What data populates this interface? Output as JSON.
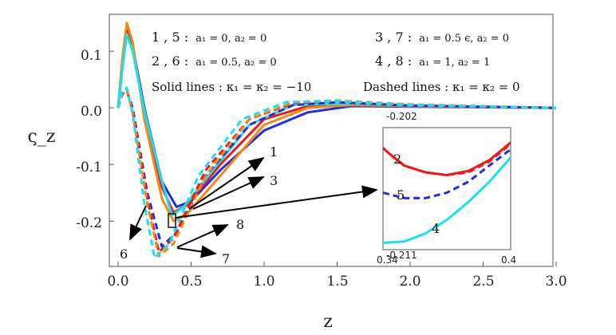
{
  "chart_data": {
    "type": "line",
    "xlabel": "z",
    "ylabel": "ς_z",
    "xlim": [
      0,
      3.0
    ],
    "ylim": [
      -0.28,
      0.165
    ],
    "x_ticks": [
      "0.0",
      "0.5",
      "1.0",
      "1.5",
      "2.0",
      "2.5",
      "3.0"
    ],
    "y_ticks": [
      "0.1",
      "0.0",
      "-0.1",
      "-0.2"
    ],
    "colors": {
      "blue": "#1f2fe0",
      "red": "#f01818",
      "orange": "#f08a10",
      "cyan": "#18e0f0"
    },
    "annotations": [
      {
        "case": "1 , 5 :",
        "formula": "a₁ = 0, a₂ = 0"
      },
      {
        "case": "2 , 6 :",
        "formula": "a₁ = 0.5, a₂ = 0"
      },
      {
        "case": "3 , 7 :",
        "formula": "a₁ = 0.5 ϵ, a₂ = 0"
      },
      {
        "case": "4 , 8 :",
        "formula": "a₁ = 1, a₂ = 1"
      }
    ],
    "solid_label": "Solid lines : κ₁ = κ₂ = −10",
    "dashed_label": "Dashed lines : κ₁ = κ₂ = 0",
    "curve_labels": [
      "1",
      "3",
      "8",
      "7",
      "6"
    ],
    "series": [
      {
        "style": "solid",
        "color": "blue",
        "points": [
          [
            0,
            0
          ],
          [
            0.03,
            0.08
          ],
          [
            0.06,
            0.14
          ],
          [
            0.1,
            0.11
          ],
          [
            0.18,
            0.0
          ],
          [
            0.3,
            -0.13
          ],
          [
            0.4,
            -0.175
          ],
          [
            0.5,
            -0.165
          ],
          [
            0.7,
            -0.11
          ],
          [
            1.0,
            -0.04
          ],
          [
            1.3,
            -0.008
          ],
          [
            1.6,
            0.003
          ],
          [
            2.0,
            0.002
          ],
          [
            3.0,
            0.0
          ]
        ]
      },
      {
        "style": "solid",
        "color": "red",
        "points": [
          [
            0,
            0
          ],
          [
            0.03,
            0.08
          ],
          [
            0.06,
            0.145
          ],
          [
            0.1,
            0.11
          ],
          [
            0.18,
            -0.01
          ],
          [
            0.3,
            -0.14
          ],
          [
            0.38,
            -0.185
          ],
          [
            0.48,
            -0.17
          ],
          [
            0.7,
            -0.1
          ],
          [
            1.0,
            -0.02
          ],
          [
            1.3,
            0.003
          ],
          [
            1.6,
            0.006
          ],
          [
            2.0,
            0.003
          ],
          [
            3.0,
            0.0
          ]
        ]
      },
      {
        "style": "solid",
        "color": "orange",
        "points": [
          [
            0,
            0
          ],
          [
            0.03,
            0.09
          ],
          [
            0.06,
            0.15
          ],
          [
            0.1,
            0.115
          ],
          [
            0.18,
            -0.02
          ],
          [
            0.3,
            -0.16
          ],
          [
            0.38,
            -0.2
          ],
          [
            0.48,
            -0.185
          ],
          [
            0.7,
            -0.12
          ],
          [
            1.0,
            -0.03
          ],
          [
            1.3,
            0.0
          ],
          [
            1.6,
            0.005
          ],
          [
            2.0,
            0.003
          ],
          [
            3.0,
            0.0
          ]
        ]
      },
      {
        "style": "solid",
        "color": "cyan",
        "points": [
          [
            0,
            0
          ],
          [
            0.03,
            0.07
          ],
          [
            0.06,
            0.13
          ],
          [
            0.1,
            0.1
          ],
          [
            0.18,
            -0.005
          ],
          [
            0.3,
            -0.13
          ],
          [
            0.37,
            -0.19
          ],
          [
            0.45,
            -0.175
          ],
          [
            0.65,
            -0.11
          ],
          [
            0.9,
            -0.03
          ],
          [
            1.2,
            0.005
          ],
          [
            1.6,
            0.008
          ],
          [
            2.0,
            0.004
          ],
          [
            3.0,
            0.0
          ]
        ]
      },
      {
        "style": "dashed",
        "color": "blue",
        "points": [
          [
            0,
            0
          ],
          [
            0.03,
            0.025
          ],
          [
            0.06,
            0.03
          ],
          [
            0.1,
            0.0
          ],
          [
            0.2,
            -0.15
          ],
          [
            0.3,
            -0.245
          ],
          [
            0.4,
            -0.22
          ],
          [
            0.6,
            -0.12
          ],
          [
            0.9,
            -0.03
          ],
          [
            1.2,
            0.005
          ],
          [
            1.5,
            0.01
          ],
          [
            2.0,
            0.004
          ],
          [
            3.0,
            0.0
          ]
        ]
      },
      {
        "style": "dashed",
        "color": "red",
        "points": [
          [
            0,
            0
          ],
          [
            0.03,
            0.025
          ],
          [
            0.06,
            0.03
          ],
          [
            0.1,
            -0.005
          ],
          [
            0.2,
            -0.16
          ],
          [
            0.28,
            -0.255
          ],
          [
            0.38,
            -0.23
          ],
          [
            0.6,
            -0.11
          ],
          [
            0.9,
            -0.02
          ],
          [
            1.2,
            0.008
          ],
          [
            1.5,
            0.012
          ],
          [
            2.0,
            0.005
          ],
          [
            3.0,
            0.0
          ]
        ]
      },
      {
        "style": "dashed",
        "color": "orange",
        "points": [
          [
            0,
            0
          ],
          [
            0.03,
            0.028
          ],
          [
            0.06,
            0.032
          ],
          [
            0.1,
            -0.01
          ],
          [
            0.2,
            -0.17
          ],
          [
            0.28,
            -0.262
          ],
          [
            0.38,
            -0.24
          ],
          [
            0.6,
            -0.12
          ],
          [
            0.9,
            -0.02
          ],
          [
            1.2,
            0.01
          ],
          [
            1.5,
            0.013
          ],
          [
            2.0,
            0.006
          ],
          [
            3.0,
            0.0
          ]
        ]
      },
      {
        "style": "dashed",
        "color": "cyan",
        "points": [
          [
            0,
            0
          ],
          [
            0.03,
            0.03
          ],
          [
            0.06,
            0.035
          ],
          [
            0.1,
            -0.01
          ],
          [
            0.18,
            -0.17
          ],
          [
            0.25,
            -0.265
          ],
          [
            0.35,
            -0.24
          ],
          [
            0.55,
            -0.12
          ],
          [
            0.85,
            -0.02
          ],
          [
            1.15,
            0.01
          ],
          [
            1.5,
            0.012
          ],
          [
            2.0,
            0.005
          ],
          [
            3.0,
            0.0
          ]
        ]
      }
    ],
    "inset": {
      "xlim": [
        0.34,
        0.4
      ],
      "ylim": [
        -0.211,
        -0.202
      ],
      "x_ticks": [
        "0.34",
        "0.4"
      ],
      "y_ticks": [
        "-0.202",
        "-0.211"
      ],
      "labels": [
        "2",
        "5",
        "4"
      ],
      "series": [
        {
          "style": "dashed",
          "color": "red",
          "points": [
            [
              0.34,
              -0.2035
            ],
            [
              0.345,
              -0.2042
            ],
            [
              0.35,
              -0.2048
            ],
            [
              0.36,
              -0.2053
            ],
            [
              0.37,
              -0.2055
            ],
            [
              0.38,
              -0.2053
            ],
            [
              0.39,
              -0.2045
            ],
            [
              0.4,
              -0.2032
            ]
          ]
        },
        {
          "style": "solid",
          "color": "red",
          "points": [
            [
              0.342,
              -0.2038
            ],
            [
              0.35,
              -0.2048
            ],
            [
              0.36,
              -0.2053
            ],
            [
              0.37,
              -0.2055
            ],
            [
              0.38,
              -0.2052
            ],
            [
              0.39,
              -0.2044
            ],
            [
              0.4,
              -0.2031
            ]
          ]
        },
        {
          "style": "dashed",
          "color": "blue",
          "points": [
            [
              0.34,
              -0.2068
            ],
            [
              0.35,
              -0.2072
            ],
            [
              0.36,
              -0.2072
            ],
            [
              0.37,
              -0.2068
            ],
            [
              0.38,
              -0.206
            ],
            [
              0.39,
              -0.2048
            ],
            [
              0.4,
              -0.2036
            ]
          ]
        },
        {
          "style": "solid",
          "color": "cyan",
          "points": [
            [
              0.34,
              -0.2105
            ],
            [
              0.35,
              -0.2104
            ],
            [
              0.36,
              -0.2098
            ],
            [
              0.37,
              -0.2088
            ],
            [
              0.38,
              -0.2075
            ],
            [
              0.39,
              -0.206
            ],
            [
              0.4,
              -0.2042
            ]
          ]
        }
      ]
    }
  }
}
